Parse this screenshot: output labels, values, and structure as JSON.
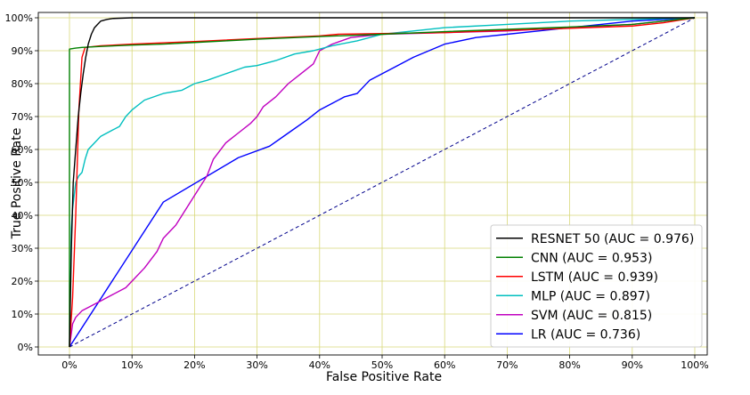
{
  "chart_data": {
    "type": "line",
    "title": "",
    "xlabel": "False Positive Rate",
    "ylabel": "True Positive Rate",
    "xlim": [
      0,
      1
    ],
    "ylim": [
      0,
      1
    ],
    "grid": true,
    "grid_color": "#d8d87a",
    "legend_position": "bottom-right",
    "x_ticks": [
      0,
      0.1,
      0.2,
      0.3,
      0.4,
      0.5,
      0.6,
      0.7,
      0.8,
      0.9,
      1.0
    ],
    "x_tick_labels": [
      "0%",
      "10%",
      "20%",
      "30%",
      "40%",
      "50%",
      "60%",
      "70%",
      "80%",
      "90%",
      "100%"
    ],
    "y_ticks": [
      0,
      0.1,
      0.2,
      0.3,
      0.4,
      0.5,
      0.6,
      0.7,
      0.8,
      0.9,
      1.0
    ],
    "y_tick_labels": [
      "0%",
      "10%",
      "20%",
      "30%",
      "40%",
      "50%",
      "60%",
      "70%",
      "80%",
      "90%",
      "100%"
    ],
    "diagonal": {
      "color": "#00008b",
      "dashed": true
    },
    "series": [
      {
        "name": "RESNET 50 (AUC = 0.976)",
        "color": "#000000",
        "x": [
          0,
          0.003,
          0.006,
          0.01,
          0.014,
          0.018,
          0.022,
          0.026,
          0.03,
          0.035,
          0.04,
          0.045,
          0.05,
          0.06,
          0.07,
          0.1,
          0.5,
          1.0
        ],
        "y": [
          0,
          0.3,
          0.5,
          0.6,
          0.7,
          0.77,
          0.83,
          0.88,
          0.92,
          0.95,
          0.97,
          0.98,
          0.99,
          0.995,
          0.998,
          1.0,
          1.0,
          1.0
        ]
      },
      {
        "name": "CNN (AUC = 0.953)",
        "color": "#008000",
        "x": [
          0,
          0,
          0.003,
          0.01,
          0.02,
          0.05,
          0.1,
          0.15,
          0.2,
          0.25,
          0.3,
          0.4,
          0.5,
          0.6,
          0.7,
          0.8,
          0.9,
          0.95,
          1.0
        ],
        "y": [
          0,
          0.905,
          0.906,
          0.908,
          0.91,
          0.913,
          0.917,
          0.92,
          0.925,
          0.93,
          0.935,
          0.943,
          0.95,
          0.958,
          0.965,
          0.972,
          0.98,
          0.99,
          1.0
        ]
      },
      {
        "name": "LSTM (AUC = 0.939)",
        "color": "#ff0000",
        "x": [
          0,
          0.005,
          0.01,
          0.015,
          0.02,
          0.025,
          0.05,
          0.1,
          0.2,
          0.3,
          0.4,
          0.43,
          0.5,
          0.6,
          0.7,
          0.8,
          0.9,
          0.95,
          1.0
        ],
        "y": [
          0,
          0.15,
          0.4,
          0.72,
          0.88,
          0.91,
          0.915,
          0.92,
          0.928,
          0.937,
          0.945,
          0.95,
          0.952,
          0.955,
          0.962,
          0.968,
          0.975,
          0.985,
          1.0
        ]
      },
      {
        "name": "MLP (AUC = 0.897)",
        "color": "#00bfbf",
        "x": [
          0,
          0.003,
          0.005,
          0.01,
          0.015,
          0.02,
          0.025,
          0.03,
          0.04,
          0.05,
          0.06,
          0.07,
          0.08,
          0.09,
          0.1,
          0.12,
          0.15,
          0.18,
          0.2,
          0.22,
          0.25,
          0.28,
          0.3,
          0.33,
          0.36,
          0.39,
          0.42,
          0.46,
          0.5,
          0.55,
          0.6,
          0.7,
          0.8,
          0.9,
          1.0
        ],
        "y": [
          0,
          0.36,
          0.42,
          0.5,
          0.52,
          0.53,
          0.57,
          0.6,
          0.62,
          0.64,
          0.65,
          0.66,
          0.67,
          0.7,
          0.72,
          0.75,
          0.77,
          0.78,
          0.8,
          0.81,
          0.83,
          0.85,
          0.855,
          0.87,
          0.89,
          0.9,
          0.915,
          0.93,
          0.95,
          0.96,
          0.97,
          0.98,
          0.99,
          0.995,
          1.0
        ]
      },
      {
        "name": "SVM (AUC = 0.815)",
        "color": "#c000c0",
        "x": [
          0,
          0.005,
          0.01,
          0.02,
          0.03,
          0.05,
          0.07,
          0.09,
          0.1,
          0.12,
          0.14,
          0.15,
          0.17,
          0.18,
          0.2,
          0.22,
          0.23,
          0.25,
          0.27,
          0.29,
          0.3,
          0.31,
          0.33,
          0.35,
          0.37,
          0.39,
          0.4,
          0.42,
          0.45,
          0.5,
          0.6,
          0.7,
          0.8,
          0.9,
          1.0
        ],
        "y": [
          0,
          0.07,
          0.09,
          0.11,
          0.12,
          0.14,
          0.16,
          0.18,
          0.2,
          0.24,
          0.29,
          0.33,
          0.37,
          0.4,
          0.46,
          0.52,
          0.57,
          0.62,
          0.65,
          0.68,
          0.7,
          0.73,
          0.76,
          0.8,
          0.83,
          0.86,
          0.9,
          0.92,
          0.94,
          0.95,
          0.955,
          0.96,
          0.97,
          0.98,
          1.0
        ]
      },
      {
        "name": "LR (AUC = 0.736)",
        "color": "#0000ff",
        "x": [
          0,
          0.15,
          0.27,
          0.32,
          0.35,
          0.38,
          0.4,
          0.42,
          0.44,
          0.46,
          0.47,
          0.48,
          0.5,
          0.52,
          0.55,
          0.6,
          0.65,
          0.7,
          0.75,
          0.8,
          0.85,
          0.9,
          1.0
        ],
        "y": [
          0,
          0.44,
          0.575,
          0.61,
          0.65,
          0.69,
          0.72,
          0.74,
          0.76,
          0.77,
          0.79,
          0.81,
          0.83,
          0.85,
          0.88,
          0.92,
          0.94,
          0.95,
          0.96,
          0.97,
          0.98,
          0.99,
          1.0
        ]
      }
    ]
  }
}
